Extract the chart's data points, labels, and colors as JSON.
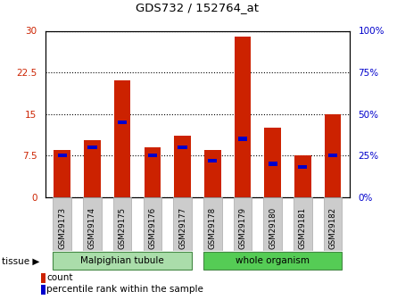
{
  "title": "GDS732 / 152764_at",
  "categories": [
    "GSM29173",
    "GSM29174",
    "GSM29175",
    "GSM29176",
    "GSM29177",
    "GSM29178",
    "GSM29179",
    "GSM29180",
    "GSM29181",
    "GSM29182"
  ],
  "counts": [
    8.5,
    10.2,
    21.0,
    9.0,
    11.0,
    8.5,
    29.0,
    12.5,
    7.5,
    15.0
  ],
  "percentiles": [
    25,
    30,
    45,
    25,
    30,
    22,
    35,
    20,
    18,
    25
  ],
  "bar_color": "#cc2200",
  "pct_color": "#0000cc",
  "ylim_left": [
    0,
    30
  ],
  "ylim_right": [
    0,
    100
  ],
  "yticks_left": [
    0,
    7.5,
    15,
    22.5,
    30
  ],
  "yticks_right": [
    0,
    25,
    50,
    75,
    100
  ],
  "ytick_labels_left": [
    "0",
    "7.5",
    "15",
    "22.5",
    "30"
  ],
  "ytick_labels_right": [
    "0%",
    "25%",
    "50%",
    "75%",
    "100%"
  ],
  "tissue_groups": [
    {
      "label": "Malpighian tubule",
      "indices": [
        0,
        1,
        2,
        3,
        4
      ],
      "color": "#aaddaa"
    },
    {
      "label": "whole organism",
      "indices": [
        5,
        6,
        7,
        8,
        9
      ],
      "color": "#55cc55"
    }
  ],
  "tissue_label": "tissue",
  "legend_items": [
    {
      "label": "count",
      "color": "#cc2200"
    },
    {
      "label": "percentile rank within the sample",
      "color": "#0000cc"
    }
  ],
  "grid_color": "black",
  "bar_width": 0.55,
  "plot_bg_color": "#ffffff",
  "border_color": "#000000",
  "group_border_color": "#448844",
  "sample_box_color": "#cccccc",
  "sample_box_border": "#aaaaaa"
}
